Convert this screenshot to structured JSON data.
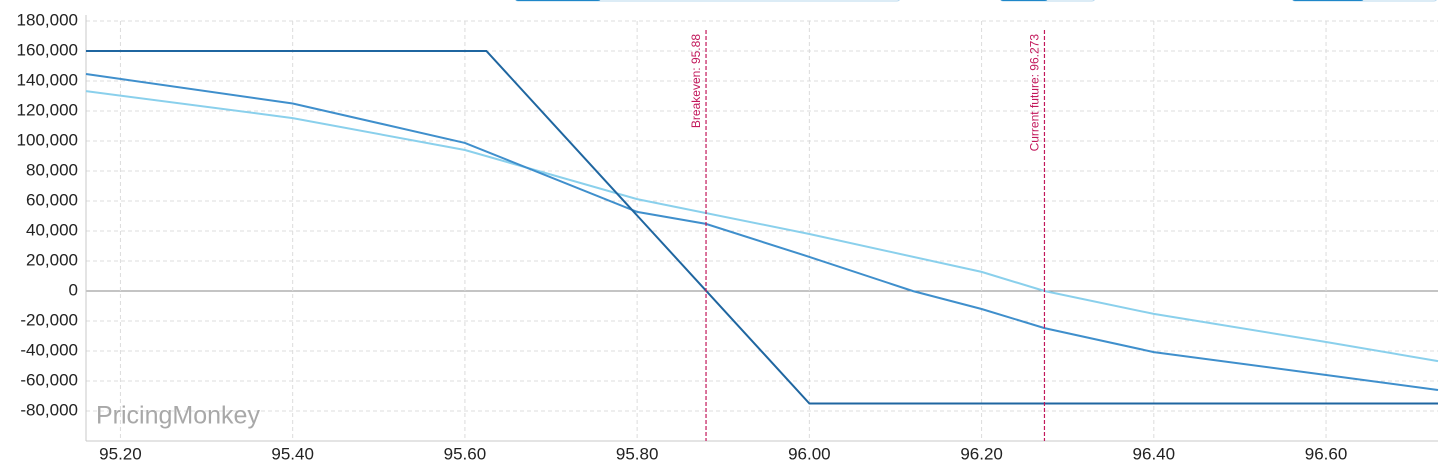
{
  "chart_data": {
    "type": "line",
    "watermark": "PricingMonkey",
    "xlim": [
      95.16,
      96.73
    ],
    "ylim": [
      -100000,
      180000
    ],
    "xticks": [
      {
        "value": 95.2,
        "label": "95.20"
      },
      {
        "value": 95.4,
        "label": "95.40"
      },
      {
        "value": 95.6,
        "label": "95.60"
      },
      {
        "value": 95.8,
        "label": "95.80"
      },
      {
        "value": 96.0,
        "label": "96.00"
      },
      {
        "value": 96.2,
        "label": "96.20"
      },
      {
        "value": 96.4,
        "label": "96.40"
      },
      {
        "value": 96.6,
        "label": "96.60"
      }
    ],
    "yticks": [
      {
        "value": -80000,
        "label": "-80,000"
      },
      {
        "value": -60000,
        "label": "-60,000"
      },
      {
        "value": -40000,
        "label": "-40,000"
      },
      {
        "value": -20000,
        "label": "-20,000"
      },
      0,
      {
        "value": 20000,
        "label": "20,000"
      },
      {
        "value": 40000,
        "label": "40,000"
      },
      {
        "value": 60000,
        "label": "60,000"
      },
      {
        "value": 80000,
        "label": "80,000"
      },
      {
        "value": 100000,
        "label": "100,000"
      },
      {
        "value": 120000,
        "label": "120,000"
      },
      {
        "value": 140000,
        "label": "140,000"
      },
      {
        "value": 160000,
        "label": "160,000"
      },
      {
        "value": 180000,
        "label": "180,000"
      }
    ],
    "grid": true,
    "zero_line_color": "#8a8a8a",
    "annotations": [
      {
        "x": 95.88,
        "text": "Breakeven: 95.88",
        "color": "#c2185b"
      },
      {
        "x": 96.273,
        "text": "Current future: 96.273",
        "color": "#c2185b"
      }
    ],
    "series": [
      {
        "color": "#8ad0ec",
        "x": [
          95.16,
          95.4,
          95.6,
          95.8,
          96.0,
          96.2,
          96.273,
          96.4,
          96.6,
          96.73
        ],
        "values": [
          133300,
          115300,
          94000,
          61300,
          38000,
          12700,
          0,
          -15300,
          -34000,
          -46700
        ]
      },
      {
        "color": "#3f8fcc",
        "x": [
          95.16,
          95.4,
          95.6,
          95.8,
          95.88,
          96.0,
          96.12,
          96.2,
          96.273,
          96.4,
          96.6,
          96.73
        ],
        "values": [
          144700,
          125000,
          98700,
          52700,
          44700,
          22700,
          0,
          -12000,
          -24700,
          -40700,
          -56000,
          -66000
        ]
      },
      {
        "color": "#1f66a0",
        "x": [
          95.16,
          95.625,
          96.0,
          96.73
        ],
        "values": [
          160000,
          160000,
          -75000,
          -75000
        ]
      }
    ]
  }
}
